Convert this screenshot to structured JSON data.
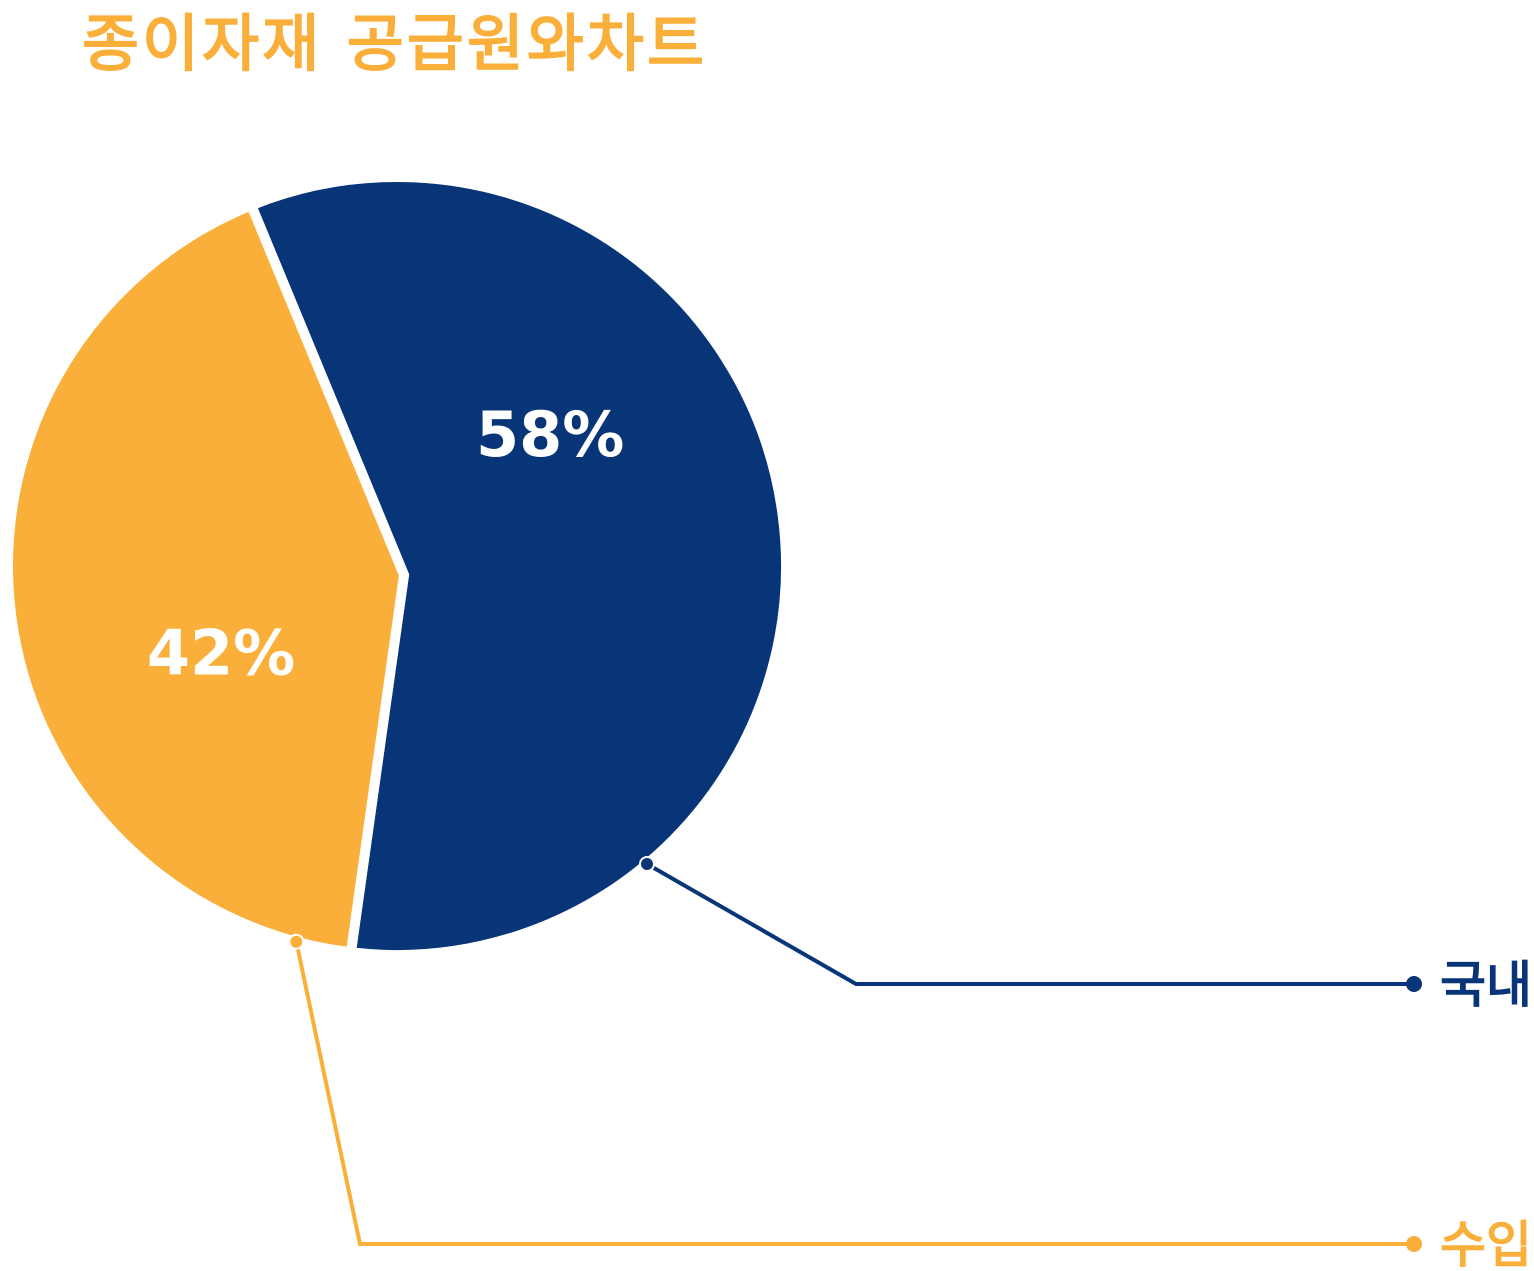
{
  "title": "종이자재 공급원와차트",
  "colors": {
    "title": "#F9AF3A",
    "background": "#FFFFFF"
  },
  "chart_data": {
    "type": "pie",
    "title": "종이자재 공급원와차트",
    "legend_placement": "right (leader lines)",
    "slices": [
      {
        "label": "국내",
        "value": 58,
        "value_label": "58%",
        "color": "#083577"
      },
      {
        "label": "수입",
        "value": 42,
        "value_label": "42%",
        "color": "#F9AF3A"
      }
    ]
  }
}
